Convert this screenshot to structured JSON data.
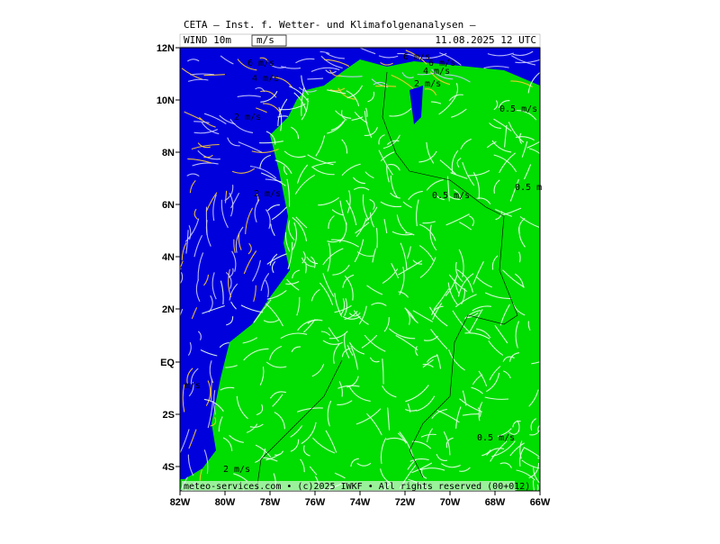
{
  "header": {
    "title": "CETA — Inst. f. Wetter- und Klimafolgenanalysen —",
    "field": "WIND 10m",
    "unit": "m/s",
    "date": "11.08.2025 12 UTC"
  },
  "axes": {
    "y_labels": [
      "12N",
      "10N",
      "8N",
      "6N",
      "4N",
      "2N",
      "EQ",
      "2S",
      "4S"
    ],
    "x_labels": [
      "82W",
      "80W",
      "78W",
      "76W",
      "74W",
      "72W",
      "70W",
      "68W",
      "66W"
    ]
  },
  "contour_labels": [
    "6 m/s",
    "4 m/s",
    "2 m/s",
    "2 m/s",
    "6 m/s",
    "6 m/s",
    "4 m/s",
    "2 m/s",
    "0.5 m/s",
    "0.5 m/s",
    "0.5 m",
    "m/s",
    "0.5 m/s",
    "2 m/s"
  ],
  "footer": "meteo-services.com • (c)2025 IWKF • All rights reserved (00+012)"
}
